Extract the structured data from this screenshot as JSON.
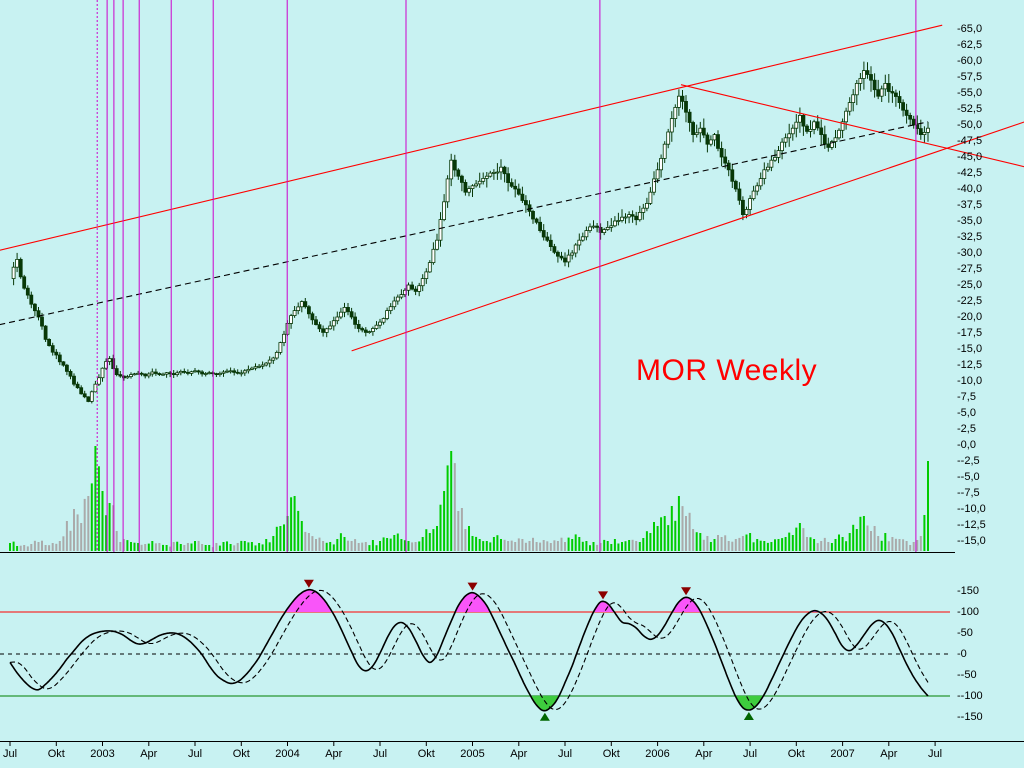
{
  "colors": {
    "background": "#c8f2f2",
    "title": "#ff0000",
    "candle": "#083808",
    "candle_up_fill": "#ffffff",
    "volume_up": "#00cc00",
    "volume_down": "#aaaaaa",
    "trend_red": "#ff0000",
    "trend_dashed_black": "#000000",
    "fib_line": "#cc00cc",
    "osc_line": "#000000",
    "osc_fill_high": "#f955f9",
    "osc_fill_low": "#3ecc3e",
    "marker_top": "#8b0000",
    "marker_bottom": "#006600",
    "hline_upper": "#ff0000",
    "hline_lower": "#008000",
    "axis_text": "#000000"
  },
  "chart_data": {
    "type": "candlestick",
    "title": "MOR Weekly",
    "x_axis": {
      "tick_labels": [
        "Jul",
        "Okt",
        "2003",
        "Apr",
        "Jul",
        "Okt",
        "2004",
        "Apr",
        "Jul",
        "Okt",
        "2005",
        "Apr",
        "Jul",
        "Okt",
        "2006",
        "Apr",
        "Jul",
        "Okt",
        "2007",
        "Apr",
        "Jul"
      ],
      "weeks_per_tick": 13
    },
    "price_axis": {
      "min": -15.0,
      "max": 65.0,
      "step": 2.5,
      "tick_labels": [
        "65,0",
        "62,5",
        "60,0",
        "57,5",
        "55,0",
        "52,5",
        "50,0",
        "47,5",
        "45,0",
        "42,5",
        "40,0",
        "37,5",
        "35,0",
        "32,5",
        "30,0",
        "27,5",
        "25,0",
        "22,5",
        "20,0",
        "17,5",
        "15,0",
        "12,5",
        "10,0",
        "7,5",
        "5,0",
        "2,5",
        "0,0",
        "-2,5",
        "-5,0",
        "-7,5",
        "-10,0",
        "-12,5",
        "-15,0"
      ]
    },
    "price": {
      "sampling": "biweekly",
      "start_label": "Jul 2002",
      "close": [
        26.0,
        29.0,
        24.5,
        22.0,
        20.0,
        16.5,
        14.5,
        13.0,
        11.5,
        9.5,
        8.0,
        6.8,
        9.5,
        12.0,
        13.5,
        11.0,
        10.5,
        11.0,
        11.2,
        10.8,
        11.4,
        11.0,
        11.3,
        11.0,
        11.5,
        11.2,
        11.6,
        11.1,
        11.3,
        11.0,
        11.4,
        11.6,
        11.2,
        11.6,
        12.0,
        12.3,
        12.8,
        13.6,
        16.0,
        19.0,
        21.0,
        22.4,
        20.5,
        18.8,
        17.6,
        18.6,
        20.0,
        21.5,
        20.0,
        18.2,
        17.6,
        18.2,
        19.2,
        21.0,
        22.5,
        23.5,
        25.0,
        24.0,
        26.0,
        28.5,
        32.0,
        38.0,
        44.5,
        42.0,
        39.5,
        40.5,
        41.2,
        42.0,
        42.6,
        43.4,
        41.0,
        40.0,
        38.2,
        36.5,
        34.8,
        32.5,
        31.0,
        29.5,
        28.6,
        30.0,
        32.0,
        33.5,
        34.2,
        33.2,
        34.0,
        35.0,
        35.6,
        36.0,
        35.2,
        37.0,
        39.5,
        43.0,
        47.0,
        51.0,
        54.5,
        52.0,
        48.5,
        49.5,
        47.0,
        48.5,
        45.0,
        43.0,
        40.0,
        36.0,
        38.5,
        40.5,
        43.0,
        44.5,
        46.0,
        48.0,
        49.5,
        51.5,
        49.0,
        50.5,
        48.5,
        46.5,
        48.0,
        50.5,
        53.5,
        56.5,
        58.5,
        57.0,
        54.5,
        56.5,
        55.0,
        53.5,
        51.5,
        50.0,
        48.5,
        49.5
      ]
    },
    "volume": [
      8,
      5,
      6,
      7,
      9,
      6,
      8,
      10,
      30,
      42,
      28,
      55,
      105,
      60,
      48,
      20,
      12,
      9,
      8,
      7,
      10,
      8,
      6,
      9,
      7,
      8,
      10,
      7,
      6,
      8,
      9,
      7,
      8,
      10,
      9,
      8,
      12,
      15,
      25,
      35,
      55,
      30,
      18,
      12,
      10,
      9,
      12,
      14,
      10,
      8,
      9,
      11,
      10,
      13,
      16,
      12,
      10,
      9,
      14,
      18,
      25,
      60,
      100,
      40,
      22,
      15,
      12,
      10,
      14,
      12,
      10,
      9,
      12,
      10,
      9,
      11,
      8,
      10,
      9,
      12,
      14,
      10,
      9,
      8,
      10,
      12,
      9,
      11,
      10,
      13,
      18,
      25,
      35,
      45,
      55,
      35,
      22,
      18,
      15,
      12,
      14,
      10,
      12,
      15,
      18,
      12,
      10,
      9,
      12,
      14,
      16,
      28,
      14,
      12,
      10,
      9,
      12,
      14,
      18,
      22,
      35,
      20,
      15,
      18,
      14,
      12,
      10,
      9,
      15,
      90
    ],
    "trendlines": [
      {
        "name": "upper-channel",
        "color": "#ff0000",
        "dashed": false,
        "w1": -3,
        "p1": 30.4,
        "w2": 262,
        "p2": 65.6
      },
      {
        "name": "lower-channel",
        "color": "#ff0000",
        "dashed": false,
        "w1": 96,
        "p1": 14.7,
        "w2": 290,
        "p2": 51.4
      },
      {
        "name": "downtrend-from-2006-peak",
        "color": "#ff0000",
        "dashed": false,
        "w1": 188.6,
        "p1": 56.3,
        "w2": 288,
        "p2": 43.1
      },
      {
        "name": "mid-dashed",
        "color": "#000000",
        "dashed": true,
        "w1": -3,
        "p1": 18.8,
        "w2": 258,
        "p2": 50.5
      }
    ],
    "fib_time_lines_weeks": [
      24.5,
      27.3,
      29.2,
      31.8,
      36.3,
      45.3,
      57.1,
      77.9,
      111.3,
      165.8,
      254.6
    ],
    "oscillator": {
      "axis_ticks": [
        "150",
        "100",
        "50",
        "0",
        "-50",
        "-100",
        "-150"
      ],
      "upper_band": 100,
      "lower_band": -100,
      "values": [
        -20,
        -45,
        -65,
        -80,
        -85,
        -72,
        -55,
        -35,
        -12,
        8,
        28,
        42,
        50,
        54,
        55,
        52,
        44,
        32,
        24,
        26,
        35,
        44,
        49,
        50,
        45,
        34,
        18,
        -2,
        -28,
        -50,
        -63,
        -70,
        -66,
        -52,
        -32,
        -8,
        22,
        52,
        82,
        108,
        130,
        146,
        153,
        148,
        132,
        108,
        78,
        42,
        5,
        -28,
        -40,
        -28,
        2,
        38,
        66,
        75,
        62,
        32,
        -2,
        -20,
        -2,
        38,
        78,
        115,
        138,
        146,
        136,
        115,
        82,
        46,
        10,
        -25,
        -62,
        -95,
        -122,
        -135,
        -127,
        -105,
        -68,
        -28,
        18,
        62,
        100,
        124,
        120,
        98,
        76,
        72,
        62,
        44,
        35,
        44,
        68,
        98,
        124,
        135,
        126,
        102,
        66,
        26,
        -18,
        -62,
        -102,
        -128,
        -133,
        -121,
        -96,
        -62,
        -26,
        10,
        44,
        74,
        94,
        103,
        97,
        78,
        48,
        18,
        8,
        22,
        45,
        68,
        80,
        72,
        48,
        12,
        -24,
        -55,
        -80,
        -100
      ]
    }
  }
}
